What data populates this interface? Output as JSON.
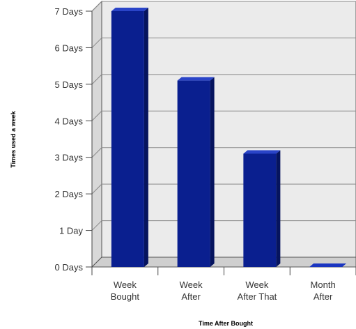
{
  "chart_data": {
    "type": "bar",
    "categories": [
      [
        "Week",
        "Bought"
      ],
      [
        "Week",
        "After"
      ],
      [
        "Week",
        "After That"
      ],
      [
        "Month",
        "After"
      ]
    ],
    "values": [
      7,
      5.1,
      3.1,
      0
    ],
    "ylim": [
      0,
      7
    ],
    "yticks": [
      {
        "value": 0,
        "label": "0 Days"
      },
      {
        "value": 1,
        "label": "1 Day"
      },
      {
        "value": 2,
        "label": "2 Days"
      },
      {
        "value": 3,
        "label": "3 Days"
      },
      {
        "value": 4,
        "label": "4 Days"
      },
      {
        "value": 5,
        "label": "5 Days"
      },
      {
        "value": 6,
        "label": "6 Days"
      },
      {
        "value": 7,
        "label": "7 Days"
      }
    ],
    "xlabel": "Time After Bought",
    "ylabel": "Times used a week",
    "grid": true,
    "bar_color": "#0a1f8f",
    "background_color": "#ebebeb"
  }
}
